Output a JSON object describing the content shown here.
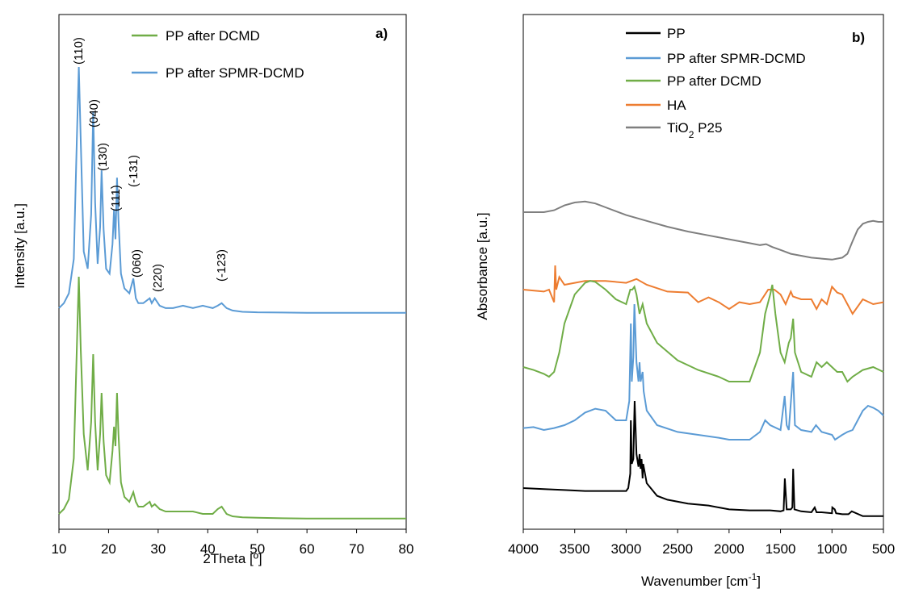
{
  "chart_data": [
    {
      "panel": "a)",
      "type": "line",
      "xlabel": "2Theta [º]",
      "ylabel": "Intensity [a.u.]",
      "xlim": [
        10,
        80
      ],
      "xticks": [
        "10",
        "20",
        "30",
        "40",
        "50",
        "60",
        "70",
        "80"
      ],
      "legend": [
        {
          "name": "PP after DCMD",
          "color": "#70AD47"
        },
        {
          "name": "PP after SPMR-DCMD",
          "color": "#5B9BD5"
        }
      ],
      "annotations": [
        "(110)",
        "(040)",
        "(130)",
        "(111)",
        "(-131)",
        "(060)",
        "(220)",
        "(-123)"
      ],
      "series": [
        {
          "name": "PP after SPMR-DCMD",
          "color": "#5B9BD5",
          "x": [
            10,
            11,
            12,
            13,
            13.6,
            14.0,
            14.4,
            15,
            15.8,
            16.5,
            16.9,
            17.3,
            17.8,
            18.3,
            18.6,
            19.0,
            19.5,
            20.2,
            20.8,
            21.1,
            21.4,
            21.7,
            22.0,
            22.5,
            23.2,
            24.2,
            25.0,
            25.5,
            26.0,
            27.0,
            28.3,
            28.7,
            29.3,
            30.3,
            31.5,
            33.0,
            35.0,
            37.0,
            39.0,
            41.0,
            42.0,
            42.8,
            43.8,
            45.0,
            47.0,
            50.0,
            55.0,
            60.0,
            65.0,
            70.0,
            75.0,
            80.0
          ],
          "y": [
            2,
            4,
            8,
            22,
            70,
            100,
            70,
            25,
            18,
            40,
            82,
            45,
            20,
            35,
            58,
            34,
            18,
            16,
            28,
            42,
            30,
            55,
            38,
            16,
            10,
            8,
            14,
            6,
            4,
            4,
            6,
            4,
            6,
            3,
            2,
            2,
            3,
            2,
            3,
            2,
            3,
            4,
            2,
            1,
            0.5,
            0.3,
            0.2,
            0.1,
            0.1,
            0.1,
            0.1,
            0.1
          ]
        },
        {
          "name": "PP after DCMD",
          "color": "#70AD47",
          "x": [
            10,
            11,
            12,
            13,
            13.6,
            14.0,
            14.4,
            15,
            15.8,
            16.5,
            16.9,
            17.3,
            17.8,
            18.3,
            18.6,
            19.0,
            19.5,
            20.2,
            20.8,
            21.1,
            21.4,
            21.7,
            22.0,
            22.5,
            23.2,
            24.2,
            25.0,
            25.5,
            26.0,
            27.0,
            28.3,
            28.7,
            29.3,
            30.3,
            31.5,
            33.0,
            35.0,
            37.0,
            39.0,
            41.0,
            42.0,
            42.8,
            43.8,
            45.0,
            47.0,
            50.0,
            55.0,
            60.0,
            65.0,
            70.0,
            75.0,
            80.0
          ],
          "y": [
            2,
            4,
            8,
            25,
            70,
            100,
            70,
            35,
            20,
            40,
            68,
            40,
            20,
            35,
            52,
            32,
            18,
            15,
            28,
            38,
            30,
            52,
            35,
            15,
            9,
            7,
            11,
            7,
            5,
            5,
            7,
            5,
            6,
            4,
            3,
            3,
            3,
            3,
            2,
            2,
            4,
            5,
            2,
            1,
            0.6,
            0.4,
            0.2,
            0.1,
            0.1,
            0.1,
            0.1,
            0.1
          ]
        }
      ]
    },
    {
      "panel": "b)",
      "type": "line",
      "xlabel": "Wavenumber [cm-1]",
      "ylabel": "Absorbance [a.u.]",
      "xlim": [
        4000,
        500
      ],
      "xticks": [
        "4000",
        "3500",
        "3000",
        "2500",
        "2000",
        "1500",
        "1000",
        "500"
      ],
      "legend": [
        {
          "name": "PP",
          "color": "#000000"
        },
        {
          "name": "PP after SPMR-DCMD",
          "color": "#5B9BD5"
        },
        {
          "name": "PP after DCMD",
          "color": "#70AD47"
        },
        {
          "name": "HA",
          "color": "#ED7D31"
        },
        {
          "name": "TiO2 P25",
          "color": "#7F7F7F"
        }
      ],
      "series": [
        {
          "name": "TiO2 P25",
          "color": "#7F7F7F",
          "x": [
            4000,
            3800,
            3700,
            3600,
            3500,
            3400,
            3300,
            3200,
            3000,
            2800,
            2600,
            2400,
            2200,
            2000,
            1800,
            1700,
            1640,
            1580,
            1500,
            1400,
            1300,
            1200,
            1100,
            1000,
            900,
            850,
            800,
            750,
            700,
            650,
            600,
            550,
            500
          ],
          "y": [
            3.15,
            3.15,
            3.17,
            3.22,
            3.25,
            3.26,
            3.24,
            3.2,
            3.12,
            3.06,
            3.0,
            2.95,
            2.91,
            2.87,
            2.83,
            2.81,
            2.82,
            2.79,
            2.76,
            2.72,
            2.7,
            2.68,
            2.67,
            2.66,
            2.68,
            2.72,
            2.85,
            2.97,
            3.03,
            3.05,
            3.06,
            3.05,
            3.05
          ]
        },
        {
          "name": "HA",
          "color": "#ED7D31",
          "x": [
            4000,
            3800,
            3750,
            3700,
            3690,
            3680,
            3650,
            3600,
            3500,
            3400,
            3200,
            3000,
            2900,
            2800,
            2600,
            2400,
            2300,
            2200,
            2100,
            2000,
            1900,
            1800,
            1700,
            1620,
            1560,
            1500,
            1450,
            1400,
            1380,
            1300,
            1200,
            1150,
            1100,
            1050,
            1000,
            950,
            900,
            850,
            800,
            700,
            600,
            500
          ],
          "y": [
            2.35,
            2.33,
            2.35,
            2.22,
            2.6,
            2.35,
            2.48,
            2.4,
            2.42,
            2.44,
            2.44,
            2.42,
            2.46,
            2.4,
            2.33,
            2.32,
            2.22,
            2.27,
            2.22,
            2.15,
            2.22,
            2.2,
            2.22,
            2.35,
            2.35,
            2.3,
            2.2,
            2.33,
            2.28,
            2.25,
            2.25,
            2.15,
            2.25,
            2.2,
            2.38,
            2.32,
            2.3,
            2.2,
            2.1,
            2.25,
            2.2,
            2.22
          ]
        },
        {
          "name": "PP after DCMD",
          "color": "#70AD47",
          "x": [
            4000,
            3900,
            3800,
            3750,
            3700,
            3650,
            3600,
            3500,
            3400,
            3350,
            3300,
            3200,
            3100,
            3000,
            2960,
            2940,
            2920,
            2900,
            2870,
            2840,
            2800,
            2700,
            2500,
            2300,
            2100,
            2000,
            1900,
            1800,
            1700,
            1650,
            1600,
            1580,
            1550,
            1500,
            1460,
            1420,
            1400,
            1377,
            1360,
            1300,
            1200,
            1150,
            1100,
            1050,
            1000,
            950,
            900,
            850,
            800,
            700,
            600,
            500
          ],
          "y": [
            1.55,
            1.52,
            1.48,
            1.45,
            1.5,
            1.7,
            2.0,
            2.3,
            2.42,
            2.44,
            2.43,
            2.35,
            2.25,
            2.2,
            2.35,
            2.35,
            2.38,
            2.3,
            2.1,
            2.2,
            2.0,
            1.8,
            1.62,
            1.52,
            1.45,
            1.4,
            1.4,
            1.4,
            1.7,
            2.1,
            2.3,
            2.4,
            2.1,
            1.7,
            1.6,
            1.8,
            1.85,
            2.05,
            1.7,
            1.5,
            1.45,
            1.6,
            1.55,
            1.6,
            1.55,
            1.5,
            1.5,
            1.4,
            1.45,
            1.52,
            1.55,
            1.5
          ]
        },
        {
          "name": "PP after SPMR-DCMD",
          "color": "#5B9BD5",
          "x": [
            4000,
            3900,
            3800,
            3700,
            3600,
            3500,
            3400,
            3300,
            3200,
            3100,
            3000,
            2970,
            2955,
            2945,
            2930,
            2920,
            2900,
            2880,
            2870,
            2860,
            2840,
            2830,
            2800,
            2700,
            2500,
            2300,
            2100,
            2000,
            1900,
            1800,
            1700,
            1650,
            1600,
            1500,
            1460,
            1440,
            1420,
            1377,
            1360,
            1300,
            1200,
            1155,
            1100,
            1000,
            970,
            900,
            850,
            800,
            700,
            650,
            600,
            550,
            500
          ],
          "y": [
            0.92,
            0.93,
            0.9,
            0.92,
            0.95,
            1.0,
            1.08,
            1.12,
            1.1,
            1.0,
            1.0,
            1.2,
            2.0,
            1.4,
            1.65,
            2.2,
            1.6,
            1.4,
            1.6,
            1.4,
            1.5,
            1.3,
            1.1,
            0.95,
            0.88,
            0.85,
            0.82,
            0.8,
            0.8,
            0.8,
            0.88,
            1.0,
            0.95,
            0.9,
            1.25,
            0.95,
            0.9,
            1.5,
            0.95,
            0.9,
            0.88,
            0.95,
            0.88,
            0.85,
            0.8,
            0.85,
            0.88,
            0.9,
            1.1,
            1.15,
            1.13,
            1.1,
            1.05
          ]
        },
        {
          "name": "PP",
          "color": "#000000",
          "x": [
            4000,
            3800,
            3600,
            3400,
            3200,
            3000,
            2980,
            2960,
            2955,
            2945,
            2930,
            2918,
            2900,
            2880,
            2870,
            2860,
            2850,
            2840,
            2835,
            2800,
            2700,
            2600,
            2400,
            2200,
            2100,
            2000,
            1800,
            1700,
            1600,
            1500,
            1470,
            1458,
            1440,
            1400,
            1385,
            1377,
            1365,
            1300,
            1200,
            1168,
            1150,
            1100,
            1000,
            997,
            973,
            960,
            900,
            840,
            808,
            700,
            600,
            500
          ],
          "y": [
            0.3,
            0.29,
            0.28,
            0.27,
            0.27,
            0.27,
            0.3,
            0.45,
            1.0,
            0.55,
            0.6,
            1.2,
            0.65,
            0.52,
            0.65,
            0.5,
            0.6,
            0.4,
            0.55,
            0.35,
            0.22,
            0.18,
            0.14,
            0.12,
            0.1,
            0.08,
            0.07,
            0.07,
            0.07,
            0.06,
            0.07,
            0.4,
            0.08,
            0.08,
            0.1,
            0.5,
            0.08,
            0.06,
            0.05,
            0.1,
            0.05,
            0.05,
            0.04,
            0.1,
            0.08,
            0.04,
            0.03,
            0.03,
            0.06,
            0.01,
            0.01,
            0.01
          ]
        }
      ]
    }
  ]
}
